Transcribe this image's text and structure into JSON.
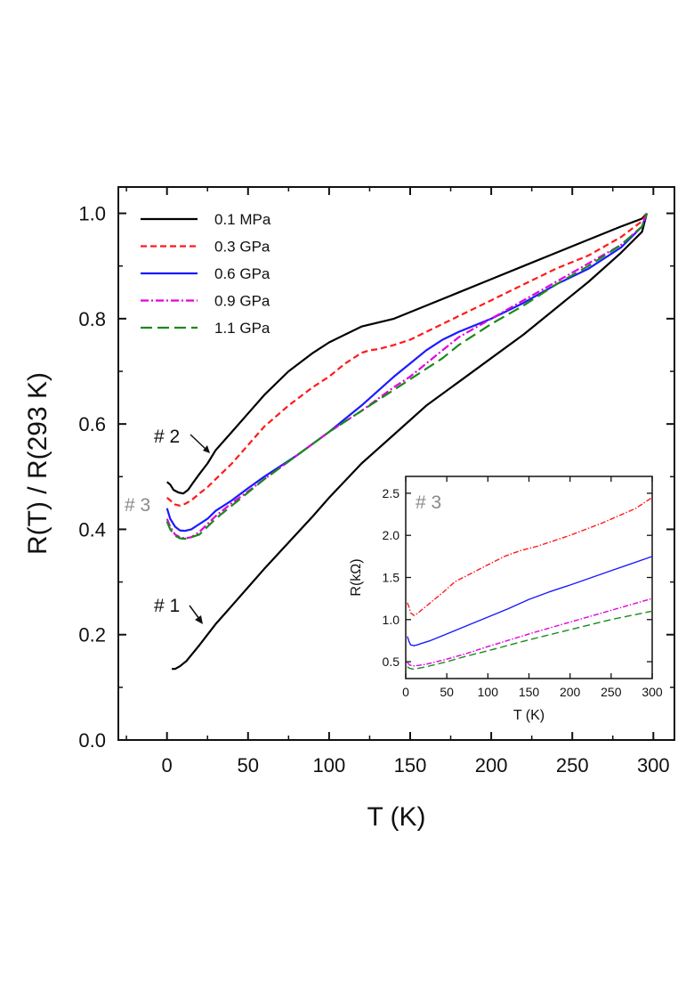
{
  "chart_data": [
    {
      "type": "line",
      "name": "main",
      "xlabel": "T (K)",
      "ylabel": "R(T) / R(293 K)",
      "xlim": [
        -30,
        313
      ],
      "ylim": [
        0.0,
        1.05
      ],
      "xticks": [
        0,
        50,
        100,
        150,
        200,
        250,
        300
      ],
      "yticks": [
        0.0,
        0.2,
        0.4,
        0.6,
        0.8,
        1.0
      ],
      "xtick_labels": [
        "0",
        "50",
        "100",
        "150",
        "200",
        "250",
        "300"
      ],
      "ytick_labels": [
        "0.0",
        "0.2",
        "0.4",
        "0.6",
        "0.8",
        "1.0"
      ],
      "legend_position": "top-left",
      "series": [
        {
          "name": "0.1 MPa",
          "color": "#000000",
          "dash": "solid",
          "curve": "#2",
          "x": [
            0,
            2,
            4,
            7,
            10,
            13,
            16,
            20,
            25,
            30,
            40,
            50,
            60,
            75,
            90,
            100,
            120,
            140,
            160,
            180,
            200,
            220,
            240,
            260,
            280,
            293,
            296
          ],
          "y": [
            0.49,
            0.485,
            0.475,
            0.47,
            0.468,
            0.475,
            0.488,
            0.505,
            0.525,
            0.55,
            0.585,
            0.62,
            0.655,
            0.7,
            0.735,
            0.755,
            0.785,
            0.8,
            0.825,
            0.85,
            0.875,
            0.9,
            0.925,
            0.95,
            0.975,
            0.99,
            1.0
          ]
        },
        {
          "name": "#1",
          "color": "#000000",
          "dash": "solid",
          "curve": "#1",
          "x": [
            3,
            5,
            8,
            12,
            16,
            20,
            25,
            30,
            40,
            50,
            60,
            75,
            90,
            100,
            120,
            140,
            160,
            180,
            200,
            220,
            240,
            260,
            280,
            293,
            296
          ],
          "y": [
            0.135,
            0.135,
            0.14,
            0.15,
            0.165,
            0.18,
            0.2,
            0.22,
            0.255,
            0.29,
            0.325,
            0.375,
            0.425,
            0.46,
            0.525,
            0.58,
            0.635,
            0.68,
            0.725,
            0.77,
            0.82,
            0.87,
            0.925,
            0.965,
            1.0
          ]
        },
        {
          "name": "0.3 GPa",
          "color": "#ff1a1a",
          "dash": "short-dash",
          "x": [
            0,
            2,
            5,
            8,
            11,
            15,
            20,
            25,
            30,
            40,
            50,
            60,
            75,
            90,
            100,
            110,
            120,
            125,
            130,
            140,
            150,
            160,
            170,
            180,
            200,
            220,
            240,
            260,
            280,
            293,
            296
          ],
          "y": [
            0.46,
            0.455,
            0.447,
            0.445,
            0.448,
            0.455,
            0.468,
            0.48,
            0.495,
            0.525,
            0.56,
            0.595,
            0.635,
            0.67,
            0.69,
            0.715,
            0.735,
            0.74,
            0.742,
            0.75,
            0.76,
            0.775,
            0.79,
            0.805,
            0.835,
            0.865,
            0.895,
            0.92,
            0.955,
            0.985,
            1.0
          ]
        },
        {
          "name": "0.6 GPa",
          "color": "#1a1aff",
          "dash": "solid",
          "x": [
            0,
            2,
            5,
            8,
            11,
            15,
            20,
            25,
            30,
            40,
            50,
            60,
            80,
            100,
            120,
            140,
            150,
            160,
            170,
            180,
            200,
            220,
            240,
            260,
            280,
            293,
            296
          ],
          "y": [
            0.44,
            0.42,
            0.405,
            0.398,
            0.397,
            0.4,
            0.41,
            0.42,
            0.435,
            0.455,
            0.478,
            0.5,
            0.54,
            0.585,
            0.635,
            0.69,
            0.715,
            0.74,
            0.76,
            0.775,
            0.8,
            0.83,
            0.865,
            0.895,
            0.935,
            0.975,
            1.0
          ]
        },
        {
          "name": "0.9 GPa",
          "color": "#e000e0",
          "dash": "dash-dot",
          "x": [
            0,
            2,
            5,
            8,
            11,
            15,
            20,
            25,
            30,
            40,
            50,
            60,
            80,
            100,
            120,
            140,
            150,
            160,
            170,
            180,
            200,
            220,
            240,
            260,
            280,
            293,
            296
          ],
          "y": [
            0.42,
            0.405,
            0.39,
            0.385,
            0.383,
            0.385,
            0.395,
            0.41,
            0.425,
            0.45,
            0.472,
            0.495,
            0.54,
            0.585,
            0.625,
            0.67,
            0.69,
            0.715,
            0.74,
            0.765,
            0.8,
            0.835,
            0.87,
            0.905,
            0.94,
            0.975,
            1.0
          ]
        },
        {
          "name": "1.1 GPa",
          "color": "#1a8a1a",
          "dash": "long-dash",
          "x": [
            0,
            2,
            5,
            8,
            11,
            15,
            20,
            25,
            30,
            40,
            50,
            60,
            80,
            100,
            120,
            140,
            150,
            160,
            170,
            180,
            200,
            220,
            240,
            260,
            280,
            293,
            296
          ],
          "y": [
            0.415,
            0.4,
            0.388,
            0.383,
            0.382,
            0.385,
            0.39,
            0.405,
            0.42,
            0.445,
            0.47,
            0.495,
            0.54,
            0.585,
            0.625,
            0.665,
            0.685,
            0.705,
            0.725,
            0.75,
            0.79,
            0.825,
            0.865,
            0.9,
            0.94,
            0.975,
            1.0
          ]
        }
      ],
      "annotations": [
        {
          "text": "# 2",
          "x": 22,
          "y": 0.55,
          "color": "#111111"
        },
        {
          "text": "# 1",
          "x": 20,
          "y": 0.25,
          "color": "#111111"
        },
        {
          "text": "# 3",
          "x": -20,
          "y": 0.445,
          "color": "#8a8a8a"
        }
      ]
    },
    {
      "type": "line",
      "name": "inset",
      "xlabel": "T (K)",
      "ylabel": "R(kΩ)",
      "xlim": [
        0,
        300
      ],
      "ylim": [
        0.3,
        2.7
      ],
      "xticks": [
        0,
        50,
        100,
        150,
        200,
        250,
        300
      ],
      "yticks": [
        0.5,
        1.0,
        1.5,
        2.0,
        2.5
      ],
      "xtick_labels": [
        "0",
        "50",
        "100",
        "150",
        "200",
        "250",
        "300"
      ],
      "ytick_labels": [
        "0.5",
        "1.0",
        "1.5",
        "2.0",
        "2.5"
      ],
      "annotations": [
        {
          "text": "# 3",
          "x": 15,
          "y": 2.5,
          "color": "#8a8a8a"
        }
      ],
      "series": [
        {
          "name": "0.3 GPa",
          "color": "#ff1a1a",
          "dash": "dash-dot",
          "x": [
            2,
            4,
            6,
            10,
            14,
            20,
            30,
            45,
            60,
            80,
            100,
            120,
            140,
            160,
            200,
            240,
            280,
            300
          ],
          "y": [
            1.2,
            1.15,
            1.08,
            1.05,
            1.07,
            1.12,
            1.2,
            1.32,
            1.45,
            1.55,
            1.65,
            1.75,
            1.82,
            1.87,
            2.0,
            2.15,
            2.32,
            2.45
          ]
        },
        {
          "name": "0.6 GPa",
          "color": "#1a1aff",
          "dash": "solid",
          "x": [
            2,
            4,
            6,
            10,
            14,
            20,
            30,
            50,
            75,
            100,
            125,
            150,
            175,
            200,
            250,
            300
          ],
          "y": [
            0.8,
            0.74,
            0.7,
            0.69,
            0.7,
            0.72,
            0.75,
            0.83,
            0.93,
            1.03,
            1.13,
            1.24,
            1.33,
            1.41,
            1.58,
            1.75
          ]
        },
        {
          "name": "0.9 GPa",
          "color": "#e000e0",
          "dash": "dash-dot",
          "x": [
            2,
            5,
            10,
            15,
            25,
            50,
            75,
            100,
            150,
            200,
            250,
            300
          ],
          "y": [
            0.49,
            0.46,
            0.45,
            0.455,
            0.47,
            0.53,
            0.6,
            0.68,
            0.83,
            0.97,
            1.11,
            1.25
          ]
        },
        {
          "name": "1.1 GPa",
          "color": "#1a8a1a",
          "dash": "long-dash",
          "x": [
            2,
            5,
            10,
            15,
            25,
            50,
            75,
            100,
            150,
            200,
            250,
            300
          ],
          "y": [
            0.44,
            0.42,
            0.41,
            0.42,
            0.44,
            0.5,
            0.57,
            0.63,
            0.76,
            0.88,
            1.0,
            1.1
          ]
        }
      ]
    }
  ]
}
